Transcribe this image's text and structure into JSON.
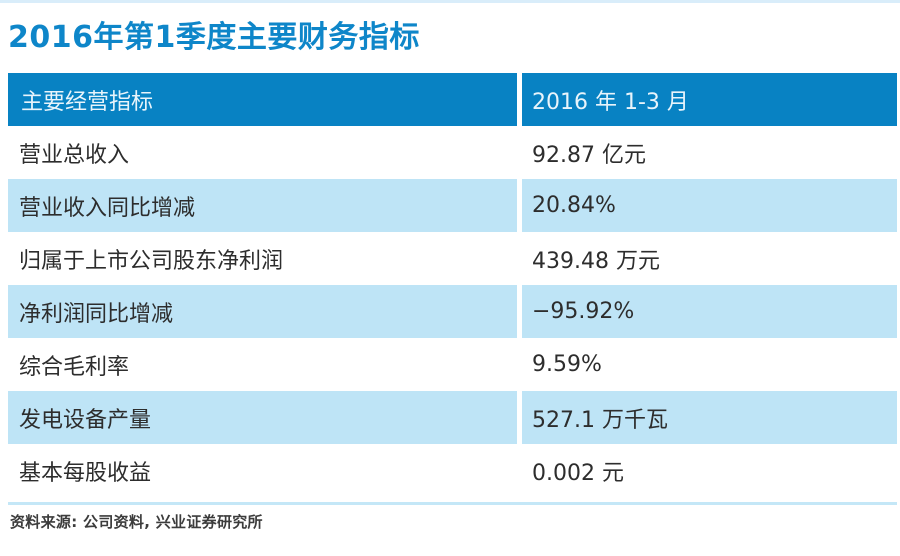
{
  "page": {
    "title": "2016年第1季度主要财务指标",
    "source_note": "资料来源: 公司资料, 兴业证券研究所"
  },
  "colors": {
    "title_text": "#0e86c9",
    "header_bg": "#0882c3",
    "header_text": "#e8f4fb",
    "row_alt_bg": "#bee4f6",
    "top_strip": "#d9edfa",
    "rule_color": "#c4e7f7",
    "body_text": "#2d2d2d",
    "note_text": "#3c3c3c"
  },
  "table": {
    "columns": [
      "主要经营指标",
      "2016 年 1-3 月"
    ],
    "rows": [
      {
        "label": "营业总收入",
        "value": "92.87 亿元"
      },
      {
        "label": "营业收入同比增减",
        "value": "20.84%"
      },
      {
        "label": "归属于上市公司股东净利润",
        "value": "439.48 万元"
      },
      {
        "label": "净利润同比增减",
        "value": "−95.92%"
      },
      {
        "label": "综合毛利率",
        "value": "9.59%"
      },
      {
        "label": "发电设备产量",
        "value": "527.1 万千瓦"
      },
      {
        "label": "基本每股收益",
        "value": "0.002 元"
      }
    ]
  }
}
